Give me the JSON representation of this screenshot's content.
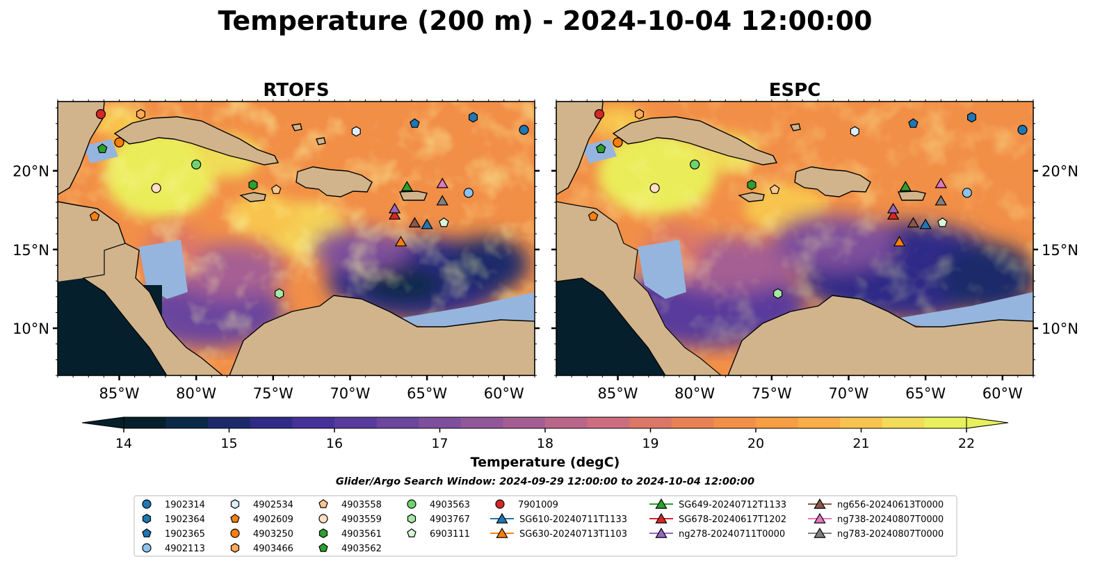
{
  "figure": {
    "title": "Temperature (200 m) - 2024-10-04 12:00:00",
    "search_window": "Glider/Argo Search Window: 2024-09-29 12:00:00 to 2024-10-04 12:00:00"
  },
  "colorbar": {
    "label": "Temperature (degC)",
    "min": 14,
    "max": 22,
    "step": 0.5,
    "ticks": [
      "14",
      "15",
      "16",
      "17",
      "18",
      "19",
      "20",
      "21",
      "22"
    ],
    "colors": [
      "#061f2c",
      "#0b2a4a",
      "#1c2a6b",
      "#2f2b87",
      "#44319a",
      "#583b9c",
      "#6b459e",
      "#7e4f9c",
      "#92569a",
      "#a55e93",
      "#b9668a",
      "#cc6e7f",
      "#dc7666",
      "#e88255",
      "#f28f47",
      "#f79d42",
      "#f9ae47",
      "#f8c34e",
      "#f2dc58",
      "#e8f05b"
    ]
  },
  "panels": [
    {
      "title": "RTOFS",
      "model": "rtofs"
    },
    {
      "title": "ESPC",
      "model": "espc"
    }
  ],
  "axes": {
    "lon_range": [
      -89,
      -58
    ],
    "lat_range": [
      7,
      24.4
    ],
    "lon_ticks": [
      "85°W",
      "80°W",
      "75°W",
      "70°W",
      "65°W",
      "60°W"
    ],
    "lat_ticks": [
      "20°N",
      "15°N",
      "10°N"
    ],
    "ocean_color": "#f28f47",
    "land_color": "#d1b48c",
    "shelf_color": "#95b5df"
  },
  "chart_data": {
    "type": "scatter",
    "title": "Temperature (200 m) - 2024-10-04 12:00:00",
    "series": [
      {
        "name": "1902314",
        "marker": "circle",
        "color": "#1f77b4",
        "lon": -58.7,
        "lat": 22.6
      },
      {
        "name": "1902364",
        "marker": "hexagon",
        "color": "#1f77b4",
        "lon": -62.0,
        "lat": 23.4
      },
      {
        "name": "1902365",
        "marker": "pentagon",
        "color": "#1f77b4",
        "lon": -65.8,
        "lat": 23.0
      },
      {
        "name": "4902113",
        "marker": "circle",
        "color": "#8cc3ee",
        "lon": -62.3,
        "lat": 18.6
      },
      {
        "name": "4902534",
        "marker": "hexagon",
        "color": "#dbeefb",
        "lon": -69.6,
        "lat": 22.5
      },
      {
        "name": "4902609",
        "marker": "pentagon",
        "color": "#ff7f0e",
        "lon": -86.6,
        "lat": 17.1
      },
      {
        "name": "4903250",
        "marker": "circle",
        "color": "#ff7f0e",
        "lon": -85.0,
        "lat": 21.8
      },
      {
        "name": "4903466",
        "marker": "hexagon",
        "color": "#ffa95a",
        "lon": -83.6,
        "lat": 23.6
      },
      {
        "name": "4903558",
        "marker": "pentagon",
        "color": "#ffc68f",
        "lon": -74.8,
        "lat": 18.8
      },
      {
        "name": "4903559",
        "marker": "circle",
        "color": "#ffe0c4",
        "lon": -82.6,
        "lat": 18.9
      },
      {
        "name": "4903561",
        "marker": "hexagon",
        "color": "#2ca02c",
        "lon": -76.3,
        "lat": 19.1
      },
      {
        "name": "4903562",
        "marker": "pentagon",
        "color": "#2ca02c",
        "lon": -86.1,
        "lat": 21.4
      },
      {
        "name": "4903563",
        "marker": "circle",
        "color": "#6fd46f",
        "lon": -80.0,
        "lat": 20.4
      },
      {
        "name": "4903767",
        "marker": "hexagon",
        "color": "#a6e8a6",
        "lon": -74.6,
        "lat": 12.2
      },
      {
        "name": "6903111",
        "marker": "pentagon",
        "color": "#d7f5d7",
        "lon": -63.9,
        "lat": 16.7
      },
      {
        "name": "7901009",
        "marker": "circle",
        "color": "#d62728",
        "lon": -86.2,
        "lat": 23.6
      },
      {
        "name": "SG610-20240711T1133",
        "marker": "triangle",
        "color": "#1f77b4",
        "line": true,
        "lon": -65.0,
        "lat": 16.6
      },
      {
        "name": "SG630-20240713T1103",
        "marker": "triangle",
        "color": "#ff7f0e",
        "line": true,
        "lon": -66.7,
        "lat": 15.5
      },
      {
        "name": "SG649-20240712T1133",
        "marker": "triangle",
        "color": "#2ca02c",
        "line": true,
        "lon": -66.3,
        "lat": 19.0
      },
      {
        "name": "SG678-20240617T1202",
        "marker": "triangle",
        "color": "#d62728",
        "line": true,
        "lon": -67.1,
        "lat": 17.2
      },
      {
        "name": "ng278-20240711T0000",
        "marker": "triangle",
        "color": "#9467bd",
        "line": true,
        "lon": -67.1,
        "lat": 17.6
      },
      {
        "name": "ng656-20240613T0000",
        "marker": "triangle",
        "color": "#8c564b",
        "line": true,
        "lon": -65.8,
        "lat": 16.7
      },
      {
        "name": "ng738-20240807T0000",
        "marker": "triangle",
        "color": "#e377c2",
        "line": true,
        "lon": -64.0,
        "lat": 19.2
      },
      {
        "name": "ng783-20240807T0000",
        "marker": "triangle",
        "color": "#7f7f7f",
        "line": true,
        "lon": -64.0,
        "lat": 18.1
      }
    ]
  },
  "legend": {
    "columns": [
      [
        "1902314",
        "1902364",
        "1902365",
        "4902113"
      ],
      [
        "4902534",
        "4902609",
        "4903250",
        "4903466"
      ],
      [
        "4903558",
        "4903559",
        "4903561",
        "4903562"
      ],
      [
        "4903563",
        "4903767",
        "6903111"
      ],
      [
        "7901009",
        "SG610-20240711T1133",
        "SG630-20240713T1103"
      ],
      [
        "SG649-20240712T1133",
        "SG678-20240617T1202",
        "ng278-20240711T0000"
      ],
      [
        "ng656-20240613T0000",
        "ng738-20240807T0000",
        "ng783-20240807T0000"
      ]
    ]
  }
}
